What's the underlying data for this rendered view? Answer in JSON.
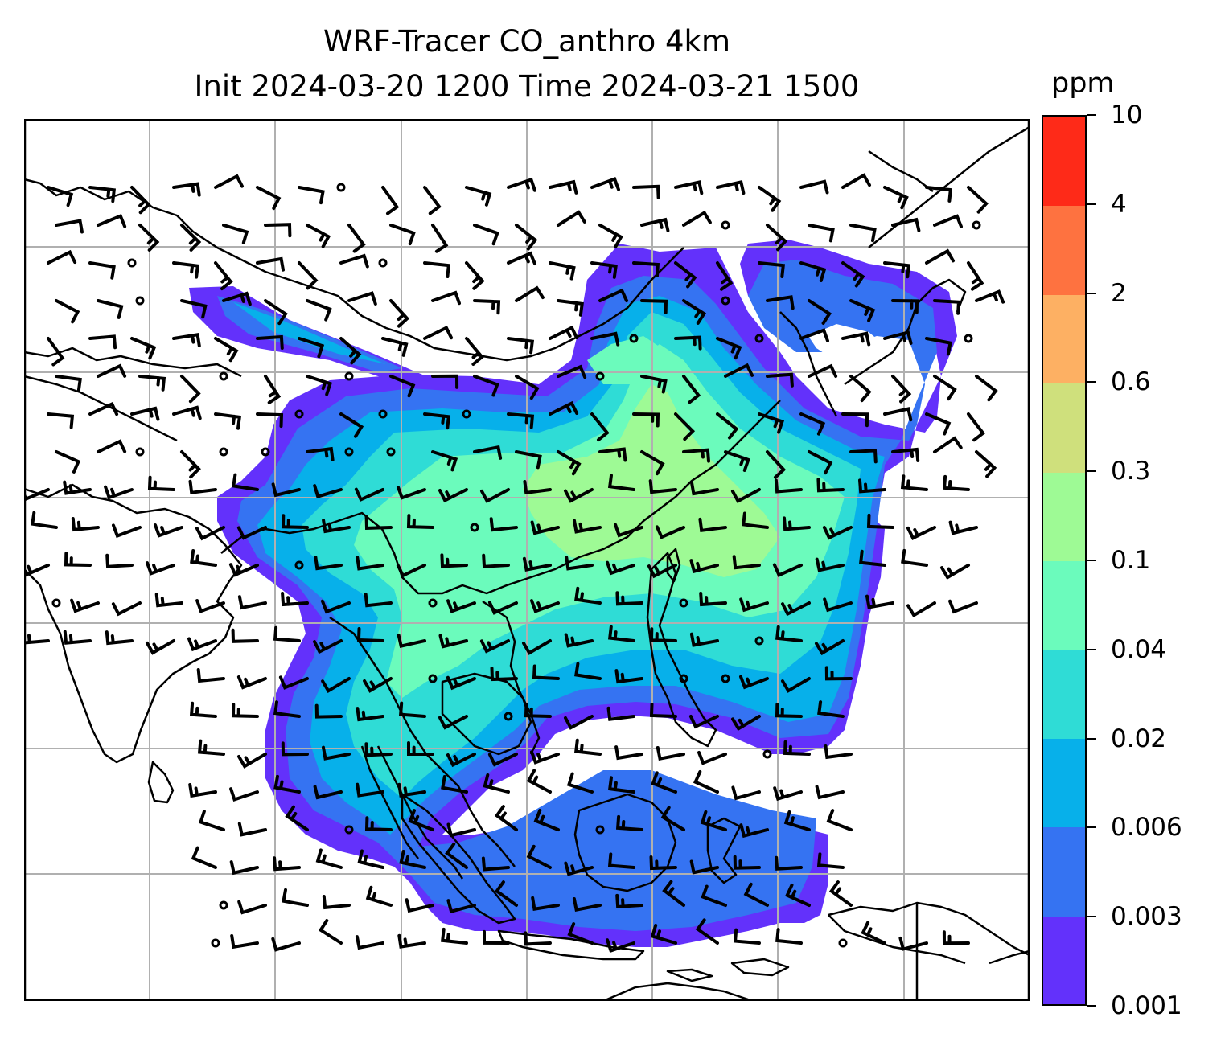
{
  "title": {
    "line1": "WRF-Tracer CO_anthro 4km",
    "line2": "Init 2024-03-20 1200 Time 2024-03-21 1500"
  },
  "colorbar": {
    "unit": "ppm",
    "tick_labels": [
      "0.001",
      "0.003",
      "0.006",
      "0.02",
      "0.04",
      "0.1",
      "0.3",
      "0.6",
      "2",
      "4",
      "10"
    ],
    "colors": [
      "#6331fb",
      "#3573f2",
      "#07b0ea",
      "#2fdcd6",
      "#6bfbbc",
      "#9efa95",
      "#cfe07c",
      "#fdb063",
      "#fe7240",
      "#fe2a18"
    ]
  },
  "map": {
    "gridlines": true,
    "features": [
      "coastlines",
      "country-borders",
      "wind-barbs",
      "tracer-concentration"
    ]
  },
  "chart_data": {
    "type": "heatmap",
    "title": "WRF-Tracer CO_anthro 4km",
    "subtitle": "Init 2024-03-20 1200 Time 2024-03-21 1500",
    "variable": "CO_anthro",
    "unit": "ppm",
    "levels": [
      0.001,
      0.003,
      0.006,
      0.02,
      0.04,
      0.1,
      0.3,
      0.6,
      2,
      4,
      10
    ],
    "colormap": "rainbow"
  }
}
